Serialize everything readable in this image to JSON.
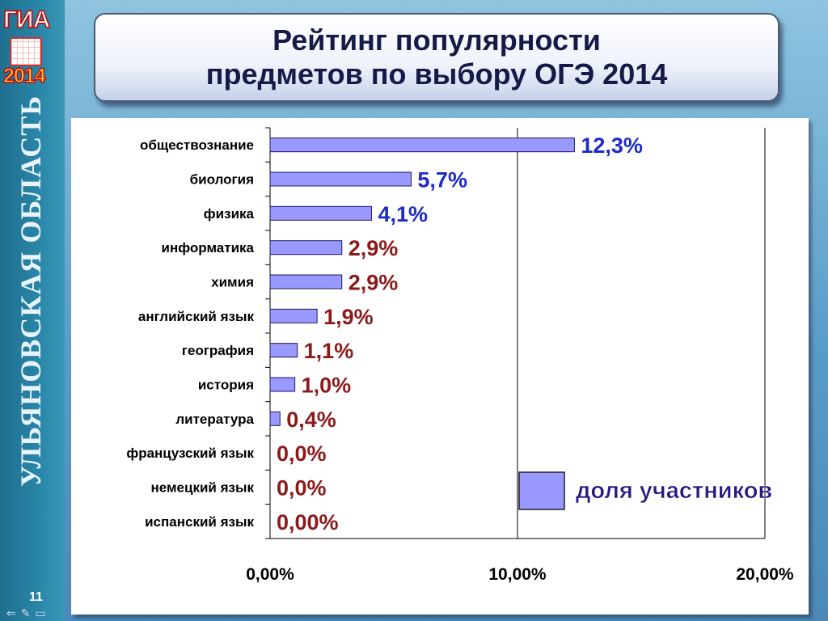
{
  "sidebar": {
    "logo_top": "ГИА",
    "logo_year": "2014",
    "region": "УЛЬЯНОВСКАЯ ОБЛАСТЬ",
    "page_number": "11",
    "nav_icons": [
      "arrow-left-icon",
      "pen-icon",
      "screen-icon"
    ]
  },
  "title": {
    "line1": "Рейтинг популярности",
    "line2": "предметов по выбору ОГЭ 2014"
  },
  "colors": {
    "bar_fill": "#9999ff",
    "bar_stroke": "#1a1a66",
    "label_high": "#1c2bc4",
    "label_low": "#8b1a1a",
    "title_text": "#151a48"
  },
  "chart_data": {
    "type": "bar",
    "orientation": "horizontal",
    "categories": [
      "обществознание",
      "биология",
      "физика",
      "информатика",
      "химия",
      "английский язык",
      "география",
      "история",
      "литература",
      "французский язык",
      "немецкий язык",
      "испанский язык"
    ],
    "series": [
      {
        "name": "доля участников",
        "values": [
          12.3,
          5.7,
          4.1,
          2.9,
          2.9,
          1.9,
          1.1,
          1.0,
          0.4,
          0.0,
          0.0,
          0.0
        ],
        "data_labels": [
          "12,3%",
          "5,7%",
          "4,1%",
          "2,9%",
          "2,9%",
          "1,9%",
          "1,1%",
          "1,0%",
          "0,4%",
          "0,0%",
          "0,0%",
          "0,00%"
        ]
      }
    ],
    "xlim": [
      0,
      20
    ],
    "x_ticks": [
      0,
      10,
      20
    ],
    "x_tick_labels": [
      "0,00%",
      "10,00%",
      "20,00%"
    ],
    "grid": "vertical",
    "legend_position": "bottom-right"
  }
}
